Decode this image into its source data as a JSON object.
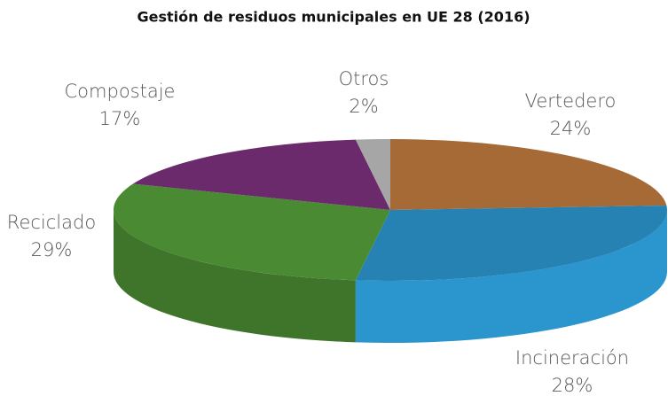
{
  "chart_data": {
    "type": "pie3d",
    "title": "Gestión de residuos municipales en UE 28 (2016)",
    "categories": [
      "Vertedero",
      "Incineración",
      "Reciclado",
      "Compostaje",
      "Otros"
    ],
    "values": [
      24,
      28,
      29,
      17,
      2
    ],
    "value_labels": [
      "24%",
      "28%",
      "29%",
      "17%",
      "2%"
    ],
    "colors": [
      "#a56a35",
      "#2582b3",
      "#4a8a32",
      "#6b2a6b",
      "#a6a6a6"
    ]
  }
}
